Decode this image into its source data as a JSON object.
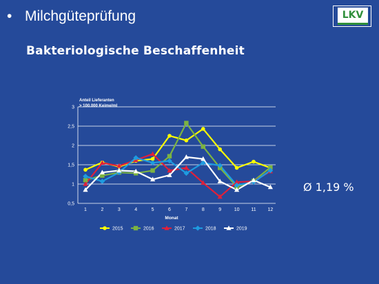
{
  "slide": {
    "bullet": "•",
    "title": "Milchgüteprüfung",
    "subtitle": "Bakteriologische Beschaffenheit",
    "logo_text": "LKV",
    "average": "Ø 1,19 %"
  },
  "colors": {
    "background": "#254a9a",
    "text": "#ffffff",
    "grid": "#ffffff",
    "logo_green": "#2f8f3a"
  },
  "chart_data": {
    "type": "line",
    "ylabel_line1": "Anteil Lieferanten",
    "ylabel_line2": "> 100.000 Keime/ml",
    "xlabel": "Monat",
    "ylim": [
      0.5,
      3
    ],
    "yticks": [
      "0,5",
      "1",
      "1,5",
      "2",
      "2,5",
      "3"
    ],
    "categories": [
      "1",
      "2",
      "3",
      "4",
      "5",
      "6",
      "7",
      "8",
      "9",
      "10",
      "11",
      "12"
    ],
    "grid": true,
    "legend_position": "bottom",
    "series": [
      {
        "name": "2015",
        "color": "#ffff00",
        "marker": "circle",
        "values": [
          1.37,
          1.56,
          1.45,
          1.6,
          1.65,
          2.25,
          2.13,
          2.43,
          1.9,
          1.42,
          1.58,
          1.42
        ]
      },
      {
        "name": "2016",
        "color": "#7cb342",
        "marker": "square",
        "values": [
          1.1,
          1.22,
          1.3,
          1.28,
          1.35,
          1.72,
          2.58,
          1.97,
          1.42,
          0.93,
          1.08,
          1.43
        ]
      },
      {
        "name": "2017",
        "color": "#e0203a",
        "marker": "triangle",
        "values": [
          1.0,
          1.55,
          1.47,
          1.62,
          1.78,
          1.35,
          1.42,
          1.03,
          0.67,
          1.05,
          1.07,
          1.33
        ]
      },
      {
        "name": "2018",
        "color": "#1e9be0",
        "marker": "diamond",
        "values": [
          1.2,
          1.07,
          1.3,
          1.68,
          1.55,
          1.6,
          1.28,
          1.55,
          1.48,
          0.97,
          1.05,
          1.35
        ]
      },
      {
        "name": "2019",
        "color": "#ffffff",
        "marker": "triangle",
        "values": [
          0.85,
          1.3,
          1.35,
          1.33,
          1.12,
          1.23,
          1.7,
          1.65,
          1.07,
          0.85,
          1.1,
          0.92
        ]
      }
    ]
  }
}
